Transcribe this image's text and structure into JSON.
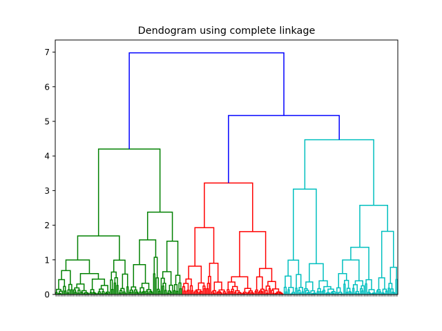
{
  "chart_data": {
    "type": "dendrogram",
    "title": "Dendogram using complete linkage",
    "xlabel": "",
    "ylabel": "",
    "ylim": [
      0,
      7.35
    ],
    "yticks": [
      "0",
      "1",
      "2",
      "3",
      "4",
      "5",
      "6",
      "7"
    ],
    "ytick_values": [
      0,
      1,
      2,
      3,
      4,
      5,
      6,
      7
    ],
    "grid": false,
    "colors": {
      "root": "#0000ff",
      "green": "#008000",
      "red": "#ff0000",
      "cyan": "#00bfbf"
    },
    "clusters": [
      {
        "color": "green",
        "leaf_count": 100,
        "height": 4.2
      },
      {
        "color": "red",
        "leaf_count": 80,
        "height": 3.22
      },
      {
        "color": "cyan",
        "leaf_count": 90,
        "height": 4.47
      }
    ],
    "root_merges": [
      {
        "children": [
          "red",
          "cyan"
        ],
        "height": 5.17
      },
      {
        "children": [
          "green",
          "red+cyan"
        ],
        "height": 6.98
      }
    ]
  }
}
